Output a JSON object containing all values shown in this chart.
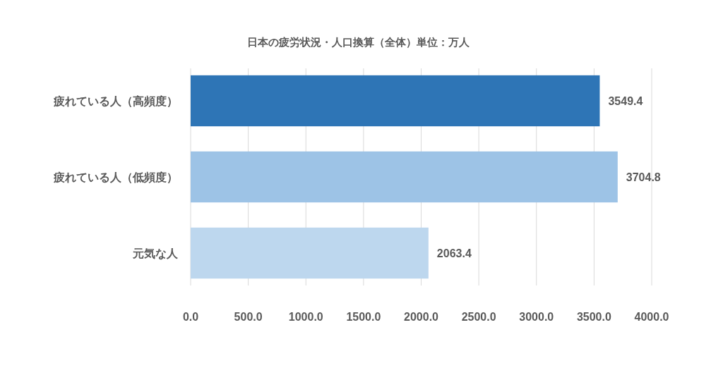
{
  "chart_data": {
    "type": "bar",
    "orientation": "horizontal",
    "title": "日本の疲労状況・人口換算（全体）単位：万人",
    "categories": [
      "疲れている人（高頻度）",
      "疲れている人（低頻度）",
      "元気な人"
    ],
    "values": [
      3549.4,
      3704.8,
      2063.4
    ],
    "colors": [
      "#2e75b6",
      "#9dc3e6",
      "#bdd7ee"
    ],
    "xlim": [
      0,
      4000
    ],
    "xticks": [
      {
        "value": 0,
        "label": "0.0"
      },
      {
        "value": 500,
        "label": "500.0"
      },
      {
        "value": 1000,
        "label": "1000.0"
      },
      {
        "value": 1500,
        "label": "1500.0"
      },
      {
        "value": 2000,
        "label": "2000.0"
      },
      {
        "value": 2500,
        "label": "2500.0"
      },
      {
        "value": 3000,
        "label": "3000.0"
      },
      {
        "value": 3500,
        "label": "3500.0"
      },
      {
        "value": 4000,
        "label": "4000.0"
      }
    ],
    "grid": "x",
    "data_labels": true
  }
}
